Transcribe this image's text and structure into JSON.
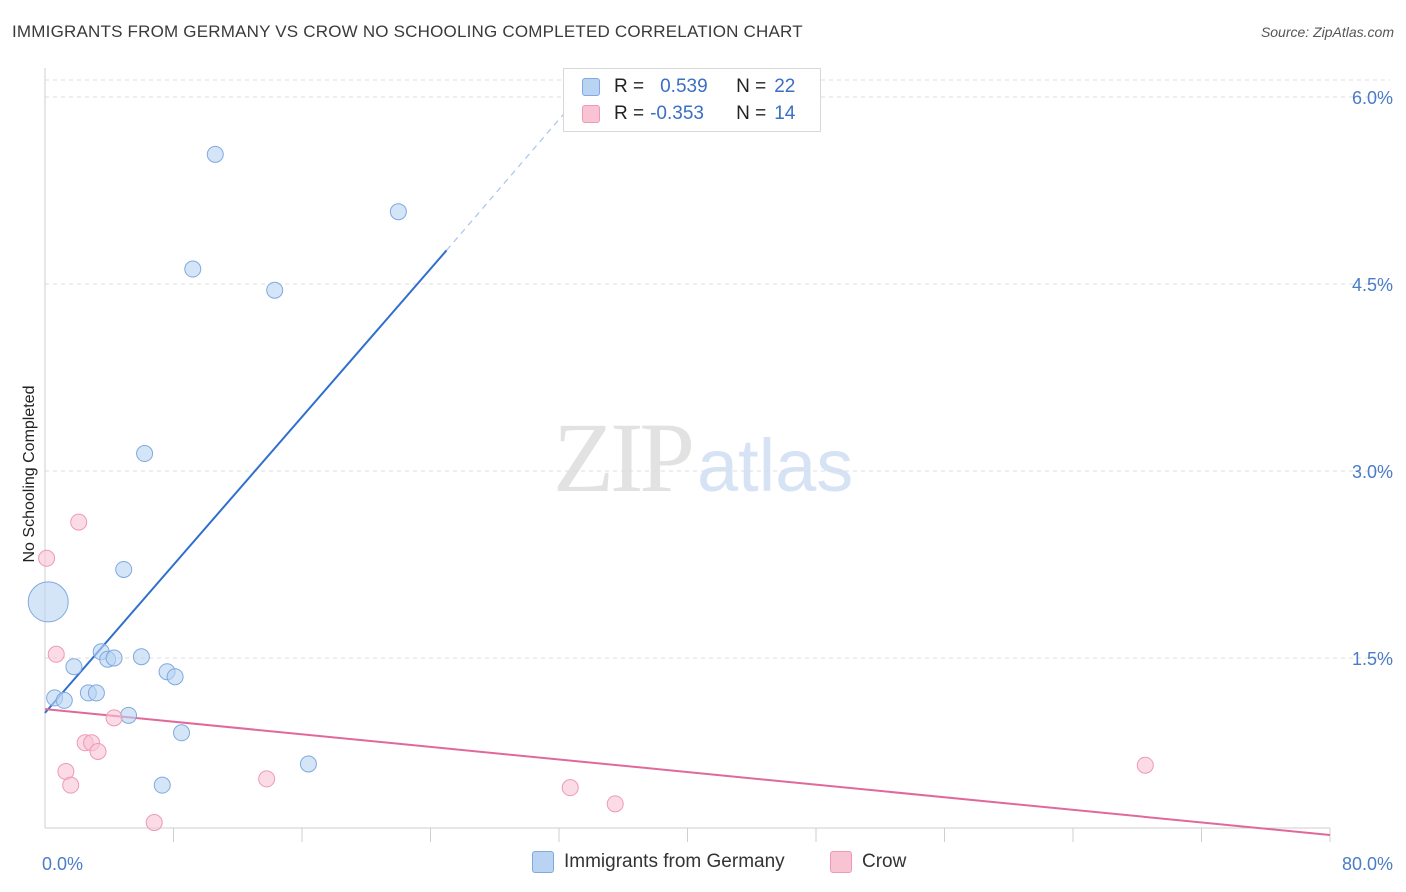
{
  "title": "IMMIGRANTS FROM GERMANY VS CROW NO SCHOOLING COMPLETED CORRELATION CHART",
  "source": "Source: ZipAtlas.com",
  "watermark": {
    "zip": "ZIP",
    "atlas": "atlas"
  },
  "legend": {
    "germany": {
      "r_label": "R =",
      "r_value": "0.539",
      "n_label": "N =",
      "n_value": "22"
    },
    "crow": {
      "r_label": "R =",
      "r_value": "-0.353",
      "n_label": "N =",
      "n_value": "14"
    }
  },
  "bottom_legend": {
    "germany": "Immigrants from Germany",
    "crow": "Crow"
  },
  "colors": {
    "germany_fill": "#b9d3f3",
    "germany_stroke": "#7fa9e0",
    "germany_line": "#2f6fce",
    "crow_fill": "#f8c3d3",
    "crow_stroke": "#ee9ab4",
    "crow_line": "#e0699a",
    "grid": "#dcdcdc",
    "axis_text": "#4a7cc7"
  },
  "chart_data": {
    "type": "scatter",
    "title": "IMMIGRANTS FROM GERMANY VS CROW NO SCHOOLING COMPLETED CORRELATION CHART",
    "xlabel": "",
    "ylabel": "No Schooling Completed",
    "xlim": [
      0,
      80
    ],
    "ylim": [
      0,
      6.3
    ],
    "x_tick_labels": [
      "0.0%",
      "80.0%"
    ],
    "y_ticks": [
      1.5,
      3.0,
      4.5,
      6.0
    ],
    "y_tick_labels": [
      "1.5%",
      "3.0%",
      "4.5%",
      "6.0%"
    ],
    "series": [
      {
        "name": "Immigrants from Germany",
        "points": [
          {
            "x": 0.2,
            "y": 1.95,
            "big": true
          },
          {
            "x": 0.6,
            "y": 1.18
          },
          {
            "x": 1.2,
            "y": 1.16
          },
          {
            "x": 1.8,
            "y": 1.43
          },
          {
            "x": 2.7,
            "y": 1.22
          },
          {
            "x": 3.2,
            "y": 1.22
          },
          {
            "x": 3.5,
            "y": 1.55
          },
          {
            "x": 3.9,
            "y": 1.49
          },
          {
            "x": 4.3,
            "y": 1.5
          },
          {
            "x": 4.9,
            "y": 2.21
          },
          {
            "x": 5.2,
            "y": 1.04
          },
          {
            "x": 6.0,
            "y": 1.51
          },
          {
            "x": 6.2,
            "y": 3.14
          },
          {
            "x": 7.3,
            "y": 0.48
          },
          {
            "x": 7.6,
            "y": 1.39
          },
          {
            "x": 8.1,
            "y": 1.35
          },
          {
            "x": 8.5,
            "y": 0.9
          },
          {
            "x": 9.2,
            "y": 4.62
          },
          {
            "x": 10.6,
            "y": 5.54
          },
          {
            "x": 14.3,
            "y": 4.45
          },
          {
            "x": 16.4,
            "y": 0.65
          },
          {
            "x": 22.0,
            "y": 5.08
          }
        ],
        "trend": {
          "x0": 0,
          "y0": 1.06,
          "x1": 25.0,
          "y1": 4.77,
          "dash_to_x": 33.0,
          "dash_to_y": 5.97
        }
      },
      {
        "name": "Crow",
        "points": [
          {
            "x": 0.1,
            "y": 2.3
          },
          {
            "x": 0.7,
            "y": 1.53
          },
          {
            "x": 1.3,
            "y": 0.59
          },
          {
            "x": 1.6,
            "y": 0.48
          },
          {
            "x": 2.1,
            "y": 2.59
          },
          {
            "x": 2.5,
            "y": 0.82
          },
          {
            "x": 2.9,
            "y": 0.82
          },
          {
            "x": 3.3,
            "y": 0.75
          },
          {
            "x": 4.3,
            "y": 1.02
          },
          {
            "x": 6.8,
            "y": 0.18
          },
          {
            "x": 13.8,
            "y": 0.53
          },
          {
            "x": 32.7,
            "y": 0.46
          },
          {
            "x": 35.5,
            "y": 0.33
          },
          {
            "x": 68.5,
            "y": 0.64
          }
        ],
        "trend": {
          "x0": 0,
          "y0": 1.09,
          "x1": 80.0,
          "y1": 0.08
        }
      }
    ]
  }
}
